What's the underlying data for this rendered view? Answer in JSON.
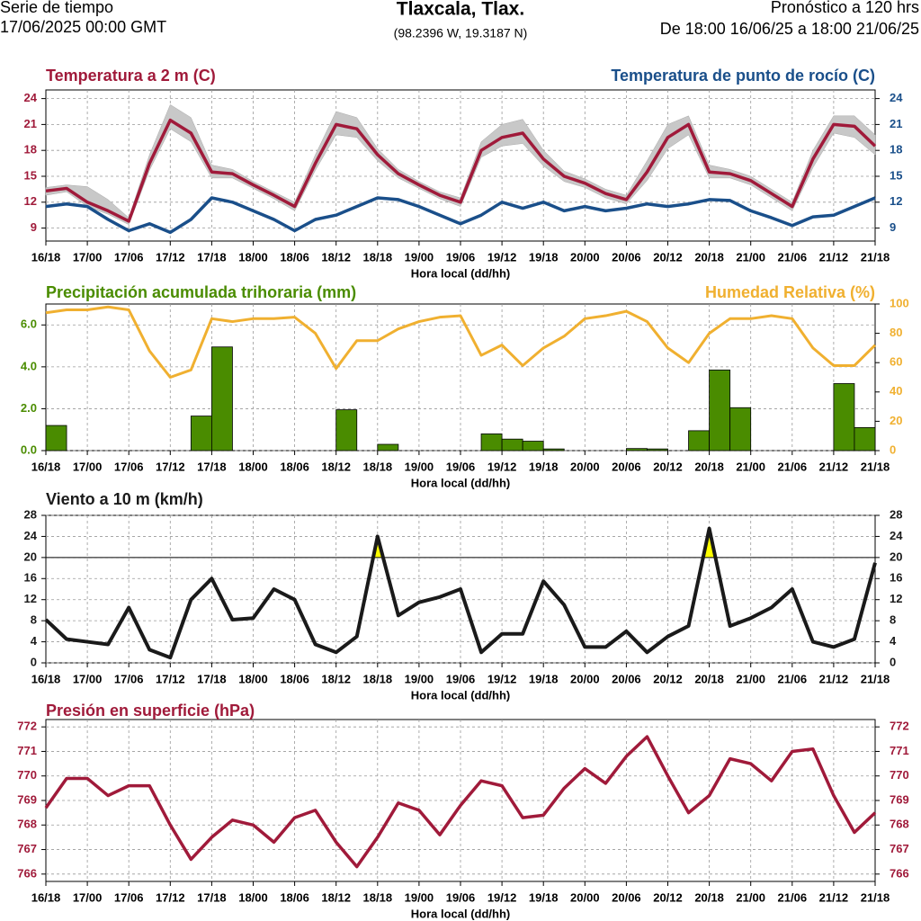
{
  "header": {
    "left": [
      "Serie de tiempo",
      "17/06/2025 00:00 GMT"
    ],
    "title": "Tlaxcala, Tlax.",
    "subtitle": "(98.2396 W, 19.3187 N)",
    "right": [
      "Pronóstico a 120 hrs",
      "De 18:00 16/06/25 a 18:00 21/06/25"
    ]
  },
  "chart_data": [
    {
      "type": "line",
      "xlabel": "Hora local (dd/hh)",
      "grid": true,
      "categories": [
        "16/18",
        null,
        "17/00",
        null,
        "17/06",
        null,
        "17/12",
        null,
        "17/18",
        null,
        "18/00",
        null,
        "18/06",
        null,
        "18/12",
        null,
        "18/18",
        null,
        "19/00",
        null,
        "19/06",
        null,
        "19/12",
        null,
        "19/18",
        null,
        "20/00",
        null,
        "20/06",
        null,
        "20/12",
        null,
        "20/18",
        null,
        "21/00",
        null,
        "21/06",
        null,
        "21/12",
        null,
        "21/18"
      ],
      "ylim": [
        7.5,
        25
      ],
      "yticks": [
        9,
        12,
        15,
        18,
        21,
        24
      ],
      "y2lim": [
        7.5,
        25
      ],
      "y2ticks": [
        9,
        12,
        15,
        18,
        21,
        24
      ],
      "band": {
        "color": "#c8c8c8",
        "high": [
          13.7,
          14.0,
          13.8,
          12.3,
          10.2,
          17.5,
          23.3,
          21.8,
          16.3,
          15.8,
          14.4,
          13.2,
          12.0,
          17.5,
          22.5,
          21.8,
          18.2,
          15.8,
          14.4,
          13.2,
          12.5,
          19.0,
          21.0,
          21.6,
          18.0,
          15.6,
          14.7,
          13.5,
          12.8,
          16.8,
          21.0,
          22.0,
          16.3,
          15.8,
          15.0,
          13.5,
          12.0,
          18.0,
          22.0,
          22.0,
          19.8
        ],
        "low": [
          12.8,
          13.2,
          11.5,
          10.6,
          9.4,
          15.7,
          20.5,
          19.0,
          14.8,
          14.8,
          13.6,
          12.4,
          11.0,
          15.7,
          19.8,
          19.5,
          16.8,
          14.8,
          13.6,
          12.4,
          11.5,
          17.2,
          18.5,
          18.8,
          16.2,
          14.4,
          13.7,
          12.5,
          11.8,
          14.5,
          18.2,
          19.8,
          14.8,
          14.8,
          14.0,
          12.5,
          11.0,
          16.0,
          20.0,
          19.5,
          17.5
        ]
      },
      "series": [
        {
          "name": "Temperatura a 2 m (C)",
          "color": "#a01a3a",
          "values": [
            13.3,
            13.6,
            12.0,
            11.0,
            9.8,
            16.5,
            21.5,
            20.0,
            15.5,
            15.3,
            14.0,
            12.8,
            11.5,
            16.5,
            21.0,
            20.5,
            17.5,
            15.3,
            14.0,
            12.8,
            12.0,
            18.0,
            19.5,
            20.0,
            17.0,
            15.0,
            14.2,
            13.0,
            12.3,
            15.5,
            19.5,
            21.0,
            15.5,
            15.3,
            14.5,
            13.0,
            11.5,
            17.0,
            21.0,
            20.8,
            18.5
          ]
        },
        {
          "name": "Temperatura de punto de rocío (C)",
          "color": "#1a4f8a",
          "axis": "y2",
          "values": [
            11.5,
            11.8,
            11.5,
            10.0,
            8.7,
            9.5,
            8.5,
            10.0,
            12.5,
            12.0,
            11.0,
            10.0,
            8.7,
            10.0,
            10.5,
            11.5,
            12.5,
            12.3,
            11.5,
            10.5,
            9.5,
            10.5,
            12.0,
            11.3,
            12.0,
            11.0,
            11.5,
            11.0,
            11.3,
            11.8,
            11.5,
            11.8,
            12.3,
            12.2,
            11.0,
            10.2,
            9.3,
            10.3,
            10.5,
            11.5,
            12.5
          ]
        }
      ]
    },
    {
      "type": "bar",
      "xlabel": "Hora local (dd/hh)",
      "grid": true,
      "categories": [
        "16/18",
        null,
        "17/00",
        null,
        "17/06",
        null,
        "17/12",
        null,
        "17/18",
        null,
        "18/00",
        null,
        "18/06",
        null,
        "18/12",
        null,
        "18/18",
        null,
        "19/00",
        null,
        "19/06",
        null,
        "19/12",
        null,
        "19/18",
        null,
        "20/00",
        null,
        "20/06",
        null,
        "20/12",
        null,
        "20/18",
        null,
        "21/00",
        null,
        "21/06",
        null,
        "21/12",
        null,
        "21/18"
      ],
      "ylim": [
        0,
        7
      ],
      "yticks": [
        {
          "value": 0,
          "label": "0.0"
        },
        {
          "value": 2,
          "label": "2.0"
        },
        {
          "value": 4,
          "label": "4.0"
        },
        {
          "value": 6,
          "label": "6.0"
        }
      ],
      "y2lim": [
        0,
        100
      ],
      "y2ticks": [
        0,
        20,
        40,
        60,
        80,
        100
      ],
      "series": [
        {
          "name": "Precipitación acumulada trihoraria (mm)",
          "color": "#4a8c00",
          "values": [
            null,
            1.2,
            0,
            0,
            0,
            0,
            0,
            0,
            1.65,
            4.95,
            0,
            0,
            0,
            0,
            0,
            1.95,
            0,
            0.3,
            0,
            0,
            0,
            0,
            0.8,
            0.55,
            0.45,
            0.08,
            0,
            0,
            0,
            0.1,
            0.08,
            0,
            0.95,
            3.85,
            2.05,
            0,
            0,
            0,
            0,
            3.2,
            1.1
          ]
        },
        {
          "name": "Humedad Relativa (%)",
          "color": "#f0b030",
          "axis": "y2",
          "type": "line",
          "values": [
            94,
            96,
            96,
            98,
            96,
            68,
            50,
            55,
            90,
            88,
            90,
            90,
            91,
            80,
            56,
            75,
            75,
            83,
            88,
            91,
            92,
            65,
            72,
            58,
            70,
            78,
            90,
            92,
            95,
            88,
            70,
            60,
            80,
            90,
            90,
            92,
            90,
            70,
            58,
            58,
            72
          ]
        }
      ]
    },
    {
      "type": "line",
      "title": "Viento a 10 m (km/h)",
      "xlabel": "Hora local (dd/hh)",
      "grid": true,
      "mirror_ticks": true,
      "threshold": 20,
      "threshold_color": "#ffff00",
      "categories": [
        "16/18",
        null,
        "17/00",
        null,
        "17/06",
        null,
        "17/12",
        null,
        "17/18",
        null,
        "18/00",
        null,
        "18/06",
        null,
        "18/12",
        null,
        "18/18",
        null,
        "19/00",
        null,
        "19/06",
        null,
        "19/12",
        null,
        "19/18",
        null,
        "20/00",
        null,
        "20/06",
        null,
        "20/12",
        null,
        "20/18",
        null,
        "21/00",
        null,
        "21/06",
        null,
        "21/12",
        null,
        "21/18"
      ],
      "ylim": [
        0,
        28
      ],
      "yticks": [
        0,
        4,
        8,
        12,
        16,
        20,
        24,
        28
      ],
      "series": [
        {
          "color": "#1a1a1a",
          "values": [
            8.2,
            4.5,
            4.0,
            3.5,
            10.5,
            2.5,
            1.0,
            12.0,
            16.0,
            8.2,
            8.5,
            14.0,
            12.0,
            3.5,
            2.0,
            5.0,
            24.0,
            9.0,
            11.5,
            12.5,
            14.0,
            2.0,
            5.5,
            5.5,
            15.5,
            11.0,
            3.0,
            3.0,
            6.0,
            2.0,
            5.0,
            7.0,
            25.5,
            7.0,
            8.5,
            10.5,
            14.0,
            4.0,
            3.0,
            4.5,
            19.0
          ]
        }
      ]
    },
    {
      "type": "line",
      "title": "Presión en superficie (hPa)",
      "xlabel": "Hora local (dd/hh)",
      "grid": true,
      "mirror_ticks": true,
      "categories": [
        "16/18",
        null,
        "17/00",
        null,
        "17/06",
        null,
        "17/12",
        null,
        "17/18",
        null,
        "18/00",
        null,
        "18/06",
        null,
        "18/12",
        null,
        "18/18",
        null,
        "19/00",
        null,
        "19/06",
        null,
        "19/12",
        null,
        "19/18",
        null,
        "20/00",
        null,
        "20/06",
        null,
        "20/12",
        null,
        "20/18",
        null,
        "21/00",
        null,
        "21/06",
        null,
        "21/12",
        null,
        "21/18"
      ],
      "ylim": [
        765.7,
        772.3
      ],
      "yticks": [
        766,
        767,
        768,
        769,
        770,
        771,
        772
      ],
      "series": [
        {
          "color": "#a01a3a",
          "values": [
            768.7,
            769.9,
            769.9,
            769.2,
            769.6,
            769.6,
            768.0,
            766.6,
            767.5,
            768.2,
            768.0,
            767.3,
            768.3,
            768.6,
            767.3,
            766.3,
            767.5,
            768.9,
            768.6,
            767.6,
            768.8,
            769.8,
            769.6,
            768.3,
            768.4,
            769.5,
            770.3,
            769.7,
            770.8,
            771.6,
            770.0,
            768.5,
            769.2,
            770.7,
            770.5,
            769.8,
            771.0,
            771.1,
            769.2,
            767.7,
            768.5
          ]
        }
      ]
    }
  ]
}
